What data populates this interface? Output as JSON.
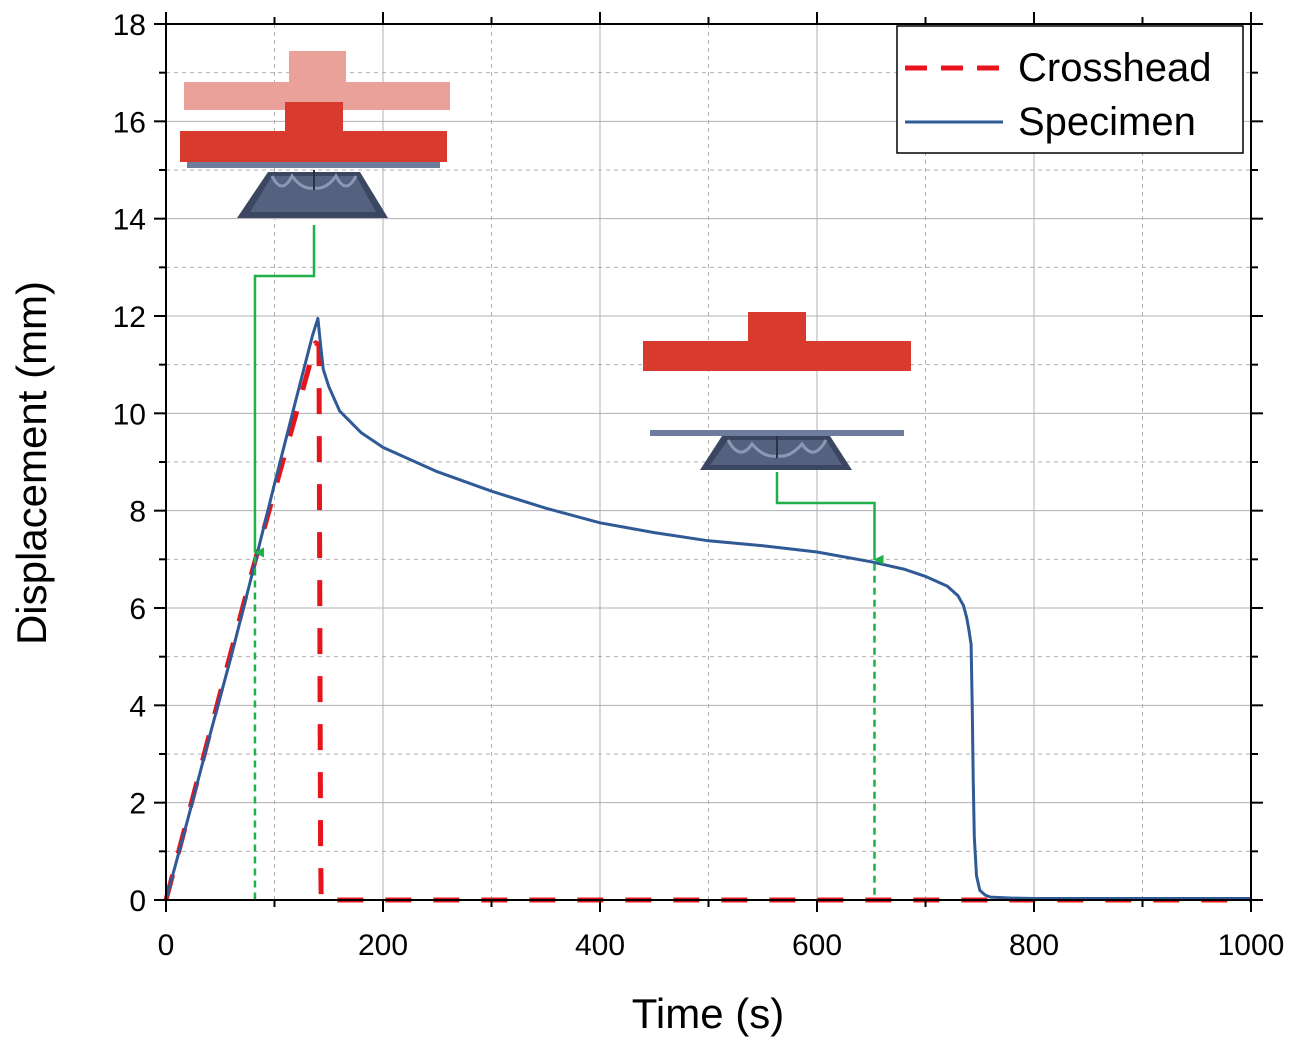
{
  "chart_data": {
    "type": "line",
    "title": "",
    "xlabel": "Time (s)",
    "ylabel": "Displacement (mm)",
    "xlim": [
      0,
      1000
    ],
    "ylim": [
      0,
      18
    ],
    "xticks": [
      0,
      200,
      400,
      600,
      800,
      1000
    ],
    "yticks": [
      0,
      2,
      4,
      6,
      8,
      10,
      12,
      14,
      16,
      18
    ],
    "grid": true,
    "legend_position": "top-right",
    "series": [
      {
        "name": "Crosshead",
        "color": "#e8141c",
        "style": "dashed",
        "x": [
          0,
          20,
          40,
          60,
          80,
          100,
          120,
          138,
          141,
          141.5,
          142,
          142.5,
          143,
          1000
        ],
        "y": [
          0,
          1.7,
          3.4,
          5.1,
          6.8,
          8.4,
          10.0,
          11.45,
          11.4,
          8.0,
          4.0,
          1.0,
          0,
          0
        ]
      },
      {
        "name": "Specimen",
        "color": "#2f5a96",
        "style": "solid",
        "x": [
          0,
          20,
          40,
          60,
          80,
          100,
          120,
          135,
          140,
          142,
          145,
          150,
          160,
          180,
          200,
          250,
          300,
          350,
          400,
          450,
          500,
          550,
          600,
          650,
          680,
          700,
          720,
          730,
          735,
          738,
          740,
          742,
          743,
          744,
          745,
          747,
          750,
          755,
          760,
          780,
          800,
          1000
        ],
        "y": [
          0,
          1.65,
          3.35,
          5.0,
          6.75,
          8.55,
          10.3,
          11.6,
          11.95,
          11.5,
          10.9,
          10.55,
          10.05,
          9.6,
          9.3,
          8.8,
          8.4,
          8.05,
          7.75,
          7.55,
          7.38,
          7.28,
          7.15,
          6.95,
          6.8,
          6.65,
          6.45,
          6.25,
          6.05,
          5.8,
          5.55,
          5.25,
          4.0,
          2.5,
          1.3,
          0.5,
          0.2,
          0.1,
          0.06,
          0.04,
          0.03,
          0.03
        ]
      }
    ],
    "annotations": [
      {
        "type": "marker",
        "time": 82,
        "displacement": 7.1,
        "linked_inset": "loading"
      },
      {
        "type": "marker",
        "time": 653,
        "displacement": 6.95,
        "linked_inset": "recovery"
      }
    ]
  },
  "colors": {
    "axis": "#000000",
    "grid": "#b0b0b0",
    "annotation": "#1fb04a",
    "indenter": "#d93a2e",
    "indenter_ghost": "#eaa19a",
    "specimen_dark": "#3b4660",
    "specimen_mid": "#6a7896",
    "plate": "#6e7d9e"
  }
}
